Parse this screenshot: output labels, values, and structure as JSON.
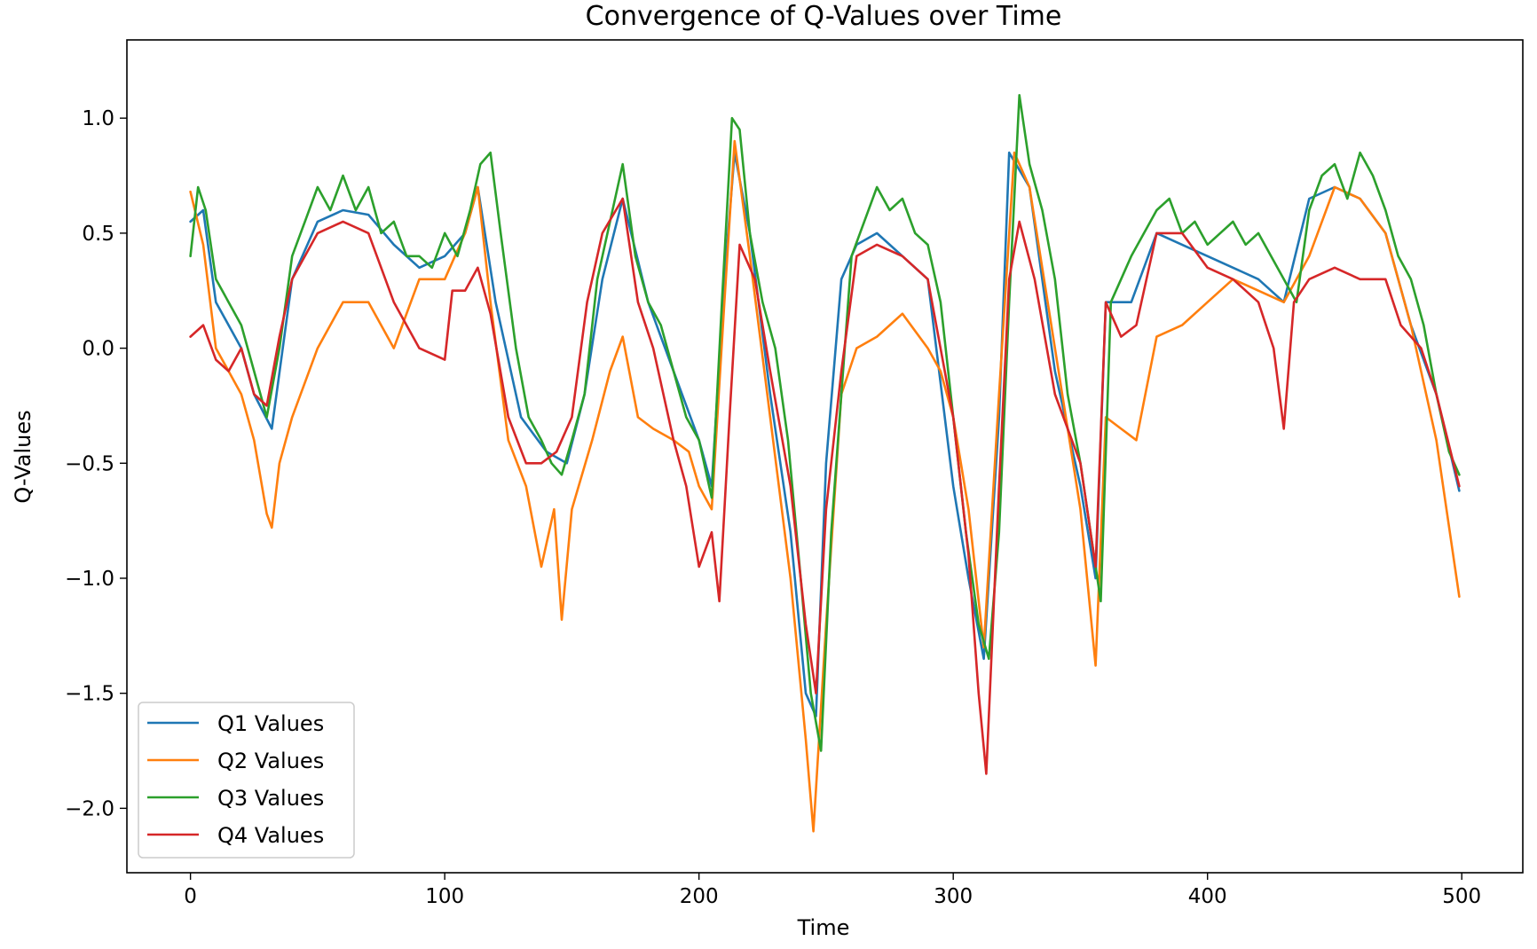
{
  "chart_data": {
    "type": "line",
    "title": "Convergence of Q-Values over Time",
    "xlabel": "Time",
    "ylabel": "Q-Values",
    "xlim": [
      -25,
      524
    ],
    "ylim": [
      -2.28,
      1.34
    ],
    "xticks": [
      0,
      100,
      200,
      300,
      400,
      500
    ],
    "xtick_labels": [
      "0",
      "100",
      "200",
      "300",
      "400",
      "500"
    ],
    "yticks": [
      1.0,
      0.5,
      0.0,
      -0.5,
      -1.0,
      -1.5,
      -2.0
    ],
    "ytick_labels": [
      "1.0",
      "0.5",
      "0.0",
      "−0.5",
      "−1.0",
      "−1.5",
      "−2.0"
    ],
    "grid": false,
    "legend_position": "lower-left",
    "series": [
      {
        "name": "Q1 Values",
        "color": "#1f77b4",
        "x": [
          0,
          5,
          10,
          15,
          20,
          25,
          32,
          40,
          50,
          60,
          70,
          80,
          90,
          100,
          108,
          113,
          120,
          130,
          140,
          148,
          155,
          162,
          170,
          180,
          190,
          200,
          205,
          210,
          214,
          220,
          228,
          236,
          242,
          246,
          250,
          256,
          262,
          270,
          280,
          290,
          300,
          306,
          312,
          318,
          322,
          330,
          340,
          350,
          356,
          360,
          370,
          380,
          390,
          400,
          410,
          420,
          430,
          440,
          450,
          460,
          470,
          480,
          490,
          499
        ],
        "y": [
          0.55,
          0.6,
          0.2,
          0.1,
          0.0,
          -0.2,
          -0.35,
          0.3,
          0.55,
          0.6,
          0.58,
          0.45,
          0.35,
          0.4,
          0.5,
          0.7,
          0.2,
          -0.3,
          -0.45,
          -0.5,
          -0.2,
          0.3,
          0.65,
          0.2,
          -0.1,
          -0.4,
          -0.6,
          0.3,
          0.85,
          0.5,
          -0.2,
          -0.8,
          -1.5,
          -1.6,
          -0.5,
          0.3,
          0.45,
          0.5,
          0.4,
          0.3,
          -0.6,
          -1.0,
          -1.35,
          -0.3,
          0.85,
          0.7,
          -0.1,
          -0.6,
          -1.0,
          0.2,
          0.2,
          0.5,
          0.45,
          0.4,
          0.35,
          0.3,
          0.2,
          0.65,
          0.7,
          0.65,
          0.5,
          0.1,
          -0.2,
          -0.62
        ]
      },
      {
        "name": "Q2 Values",
        "color": "#ff7f0e",
        "x": [
          0,
          5,
          10,
          15,
          20,
          25,
          30,
          32,
          35,
          40,
          50,
          60,
          70,
          80,
          90,
          100,
          108,
          113,
          118,
          125,
          132,
          138,
          143,
          146,
          150,
          158,
          165,
          170,
          176,
          182,
          190,
          196,
          200,
          205,
          210,
          214,
          220,
          228,
          236,
          242,
          245,
          250,
          256,
          262,
          270,
          280,
          290,
          295,
          300,
          306,
          312,
          318,
          324,
          330,
          340,
          350,
          356,
          360,
          366,
          372,
          380,
          390,
          400,
          410,
          420,
          430,
          440,
          450,
          460,
          470,
          480,
          490,
          499
        ],
        "y": [
          0.68,
          0.45,
          0.0,
          -0.1,
          -0.2,
          -0.4,
          -0.72,
          -0.78,
          -0.5,
          -0.3,
          0.0,
          0.2,
          0.2,
          0.0,
          0.3,
          0.3,
          0.5,
          0.7,
          0.2,
          -0.4,
          -0.6,
          -0.95,
          -0.7,
          -1.18,
          -0.7,
          -0.4,
          -0.1,
          0.05,
          -0.3,
          -0.35,
          -0.4,
          -0.45,
          -0.6,
          -0.7,
          0.2,
          0.9,
          0.4,
          -0.3,
          -1.0,
          -1.7,
          -2.1,
          -1.2,
          -0.2,
          0.0,
          0.05,
          0.15,
          0.0,
          -0.1,
          -0.3,
          -0.7,
          -1.3,
          -0.2,
          0.85,
          0.7,
          0.0,
          -0.7,
          -1.38,
          -0.3,
          -0.35,
          -0.4,
          0.05,
          0.1,
          0.2,
          0.3,
          0.25,
          0.2,
          0.4,
          0.7,
          0.65,
          0.5,
          0.1,
          -0.4,
          -1.08
        ]
      },
      {
        "name": "Q3 Values",
        "color": "#2ca02c",
        "x": [
          0,
          3,
          6,
          10,
          15,
          20,
          25,
          30,
          35,
          40,
          45,
          50,
          55,
          60,
          65,
          70,
          75,
          80,
          85,
          90,
          95,
          100,
          105,
          110,
          114,
          118,
          122,
          128,
          133,
          138,
          142,
          146,
          150,
          155,
          160,
          165,
          170,
          175,
          180,
          185,
          190,
          195,
          200,
          205,
          209,
          213,
          216,
          220,
          225,
          230,
          235,
          240,
          244,
          248,
          252,
          256,
          260,
          265,
          270,
          275,
          280,
          285,
          290,
          295,
          300,
          305,
          310,
          314,
          318,
          322,
          326,
          330,
          335,
          340,
          345,
          350,
          354,
          358,
          362,
          366,
          370,
          375,
          380,
          385,
          390,
          395,
          400,
          405,
          410,
          415,
          420,
          425,
          430,
          435,
          440,
          445,
          450,
          455,
          460,
          465,
          470,
          475,
          480,
          485,
          490,
          495,
          499
        ],
        "y": [
          0.4,
          0.7,
          0.6,
          0.3,
          0.2,
          0.1,
          -0.1,
          -0.3,
          0.0,
          0.4,
          0.55,
          0.7,
          0.6,
          0.75,
          0.6,
          0.7,
          0.5,
          0.55,
          0.4,
          0.4,
          0.35,
          0.5,
          0.4,
          0.6,
          0.8,
          0.85,
          0.5,
          0.0,
          -0.3,
          -0.4,
          -0.5,
          -0.55,
          -0.4,
          -0.2,
          0.3,
          0.55,
          0.8,
          0.4,
          0.2,
          0.1,
          -0.1,
          -0.3,
          -0.4,
          -0.65,
          0.2,
          1.0,
          0.95,
          0.5,
          0.2,
          0.0,
          -0.4,
          -1.0,
          -1.5,
          -1.75,
          -0.8,
          -0.2,
          0.4,
          0.55,
          0.7,
          0.6,
          0.65,
          0.5,
          0.45,
          0.2,
          -0.3,
          -0.8,
          -1.2,
          -1.35,
          -0.8,
          0.2,
          1.1,
          0.8,
          0.6,
          0.3,
          -0.2,
          -0.5,
          -0.8,
          -1.1,
          0.2,
          0.3,
          0.4,
          0.5,
          0.6,
          0.65,
          0.5,
          0.55,
          0.45,
          0.5,
          0.55,
          0.45,
          0.5,
          0.4,
          0.3,
          0.2,
          0.6,
          0.75,
          0.8,
          0.65,
          0.85,
          0.75,
          0.6,
          0.4,
          0.3,
          0.1,
          -0.2,
          -0.45,
          -0.55
        ]
      },
      {
        "name": "Q4 Values",
        "color": "#d62728",
        "x": [
          0,
          5,
          10,
          15,
          20,
          25,
          30,
          35,
          40,
          50,
          60,
          70,
          80,
          90,
          100,
          103,
          108,
          113,
          118,
          125,
          132,
          138,
          144,
          150,
          156,
          162,
          170,
          176,
          182,
          190,
          195,
          200,
          205,
          208,
          212,
          216,
          222,
          228,
          236,
          242,
          246,
          250,
          256,
          262,
          270,
          280,
          290,
          300,
          306,
          310,
          313,
          318,
          322,
          326,
          332,
          340,
          350,
          356,
          360,
          366,
          372,
          380,
          390,
          400,
          410,
          420,
          426,
          430,
          434,
          440,
          450,
          460,
          470,
          476,
          484,
          490,
          499
        ],
        "y": [
          0.05,
          0.1,
          -0.05,
          -0.1,
          0.0,
          -0.2,
          -0.25,
          0.05,
          0.3,
          0.5,
          0.55,
          0.5,
          0.2,
          0.0,
          -0.05,
          0.25,
          0.25,
          0.35,
          0.15,
          -0.3,
          -0.5,
          -0.5,
          -0.45,
          -0.3,
          0.2,
          0.5,
          0.65,
          0.2,
          0.0,
          -0.4,
          -0.6,
          -0.95,
          -0.8,
          -1.1,
          -0.3,
          0.45,
          0.3,
          -0.1,
          -0.6,
          -1.2,
          -1.5,
          -0.7,
          -0.1,
          0.4,
          0.45,
          0.4,
          0.3,
          -0.3,
          -0.9,
          -1.5,
          -1.85,
          -0.6,
          0.3,
          0.55,
          0.3,
          -0.2,
          -0.5,
          -0.95,
          0.2,
          0.05,
          0.1,
          0.5,
          0.5,
          0.35,
          0.3,
          0.2,
          0.0,
          -0.35,
          0.2,
          0.3,
          0.35,
          0.3,
          0.3,
          0.1,
          0.0,
          -0.2,
          -0.6
        ]
      }
    ]
  }
}
